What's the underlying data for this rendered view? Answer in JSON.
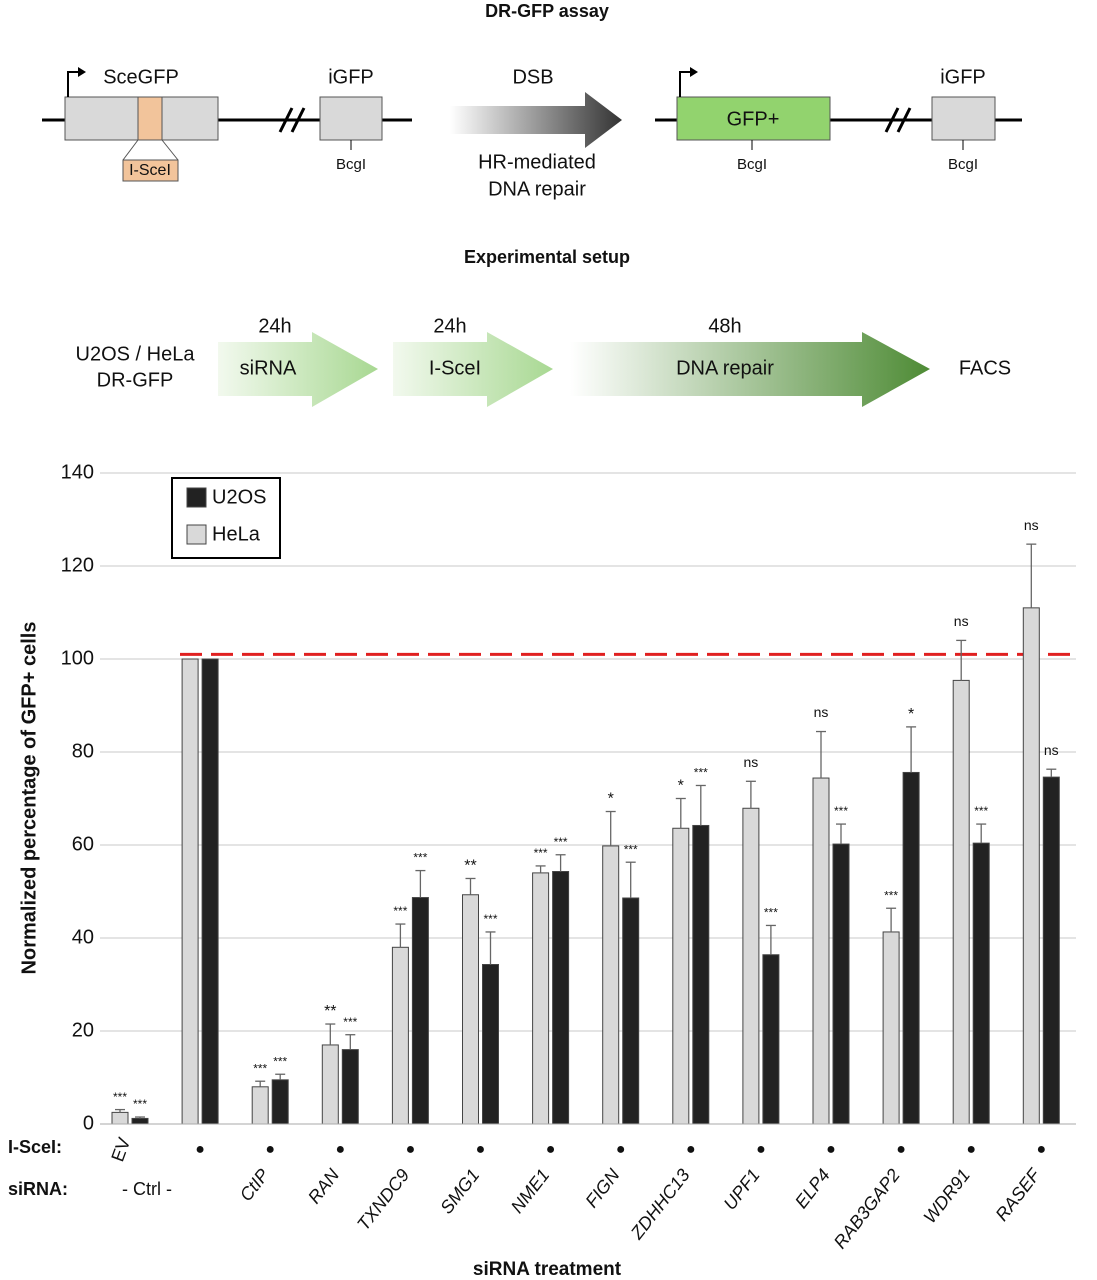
{
  "dr_gfp": {
    "title": "DR-GFP assay",
    "before": {
      "gene": "SceGFP",
      "site": "I-SceI",
      "downstream": "iGFP",
      "marker": "BcgI"
    },
    "arrow_top": "DSB",
    "arrow_bottom": [
      "HR-mediated",
      "DNA repair"
    ],
    "after": {
      "gene": "GFP+",
      "marker": "BcgI",
      "downstream": "iGFP",
      "downstream_marker": "BcgI"
    }
  },
  "setup": {
    "title": "Experimental setup",
    "cells": [
      "U2OS / HeLa",
      "DR-GFP"
    ],
    "steps": [
      {
        "time": "24h",
        "label": "siRNA"
      },
      {
        "time": "24h",
        "label": "I-SceI"
      },
      {
        "time": "48h",
        "label": "DNA repair"
      }
    ],
    "readout": "FACS"
  },
  "chart_data": {
    "type": "bar",
    "ylabel": "Normalized percentage of GFP+ cells",
    "xlabel": "siRNA treatment",
    "row_labels": [
      "I-SceI:",
      "siRNA:"
    ],
    "iscei_labels": [
      "EV",
      "●",
      "●",
      "●",
      "●",
      "●",
      "●",
      "●",
      "●",
      "●",
      "●",
      "●",
      "●",
      "●"
    ],
    "ctrl_label": "- Ctrl -",
    "categories": [
      null,
      null,
      "CtIP",
      "RAN",
      "TXNDC9",
      "SMG1",
      "NME1",
      "FIGN",
      "ZDHHC13",
      "UPF1",
      "ELP4",
      "RAB3GAP2",
      "WDR91",
      "RASEF"
    ],
    "series": [
      {
        "name": "HeLa",
        "color": "#d9d9d9",
        "values": [
          2.5,
          100,
          8,
          17,
          38,
          49.3,
          54,
          59.8,
          63.6,
          67.9,
          74.4,
          41.3,
          95.4,
          111
        ],
        "errors": [
          0.6,
          0,
          1.2,
          4.5,
          5,
          3.5,
          1.5,
          7.4,
          6.4,
          5.8,
          10,
          5.1,
          8.6,
          13.7
        ],
        "significance": [
          "***",
          null,
          "***",
          "**",
          "***",
          "**",
          "***",
          "*",
          "*",
          "ns",
          "ns",
          "***",
          "ns",
          "ns"
        ]
      },
      {
        "name": "U2OS",
        "color": "#222222",
        "values": [
          1.2,
          100,
          9.5,
          16,
          48.7,
          34.3,
          54.3,
          48.6,
          64.2,
          36.4,
          60.2,
          75.6,
          60.4,
          74.6
        ],
        "errors": [
          0.3,
          0,
          1.2,
          3.2,
          5.8,
          7,
          3.6,
          7.7,
          8.6,
          6.3,
          4.3,
          9.8,
          4.1,
          1.7
        ],
        "significance": [
          "***",
          null,
          "***",
          "***",
          "***",
          "***",
          "***",
          "***",
          "***",
          "***",
          "***",
          "*",
          "***",
          "ns"
        ]
      }
    ],
    "reference_line": {
      "value": 101,
      "color": "#e02020"
    },
    "ylim": [
      0,
      140
    ],
    "yticks": [
      0,
      20,
      40,
      60,
      80,
      100,
      120,
      140
    ],
    "grid": true,
    "legend": "upper left"
  }
}
